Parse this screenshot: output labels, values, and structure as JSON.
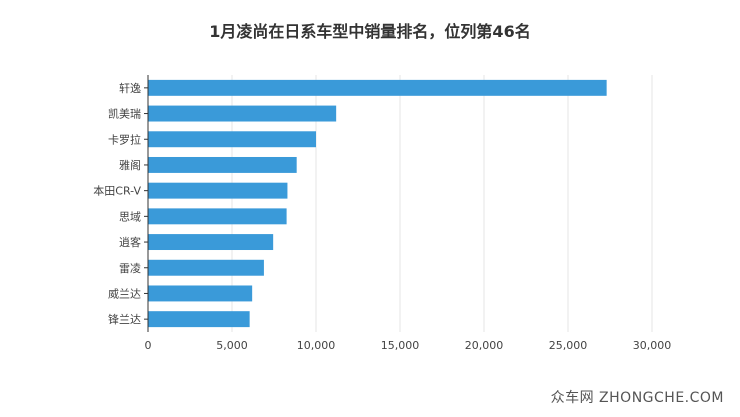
{
  "chart_data": {
    "type": "bar",
    "orientation": "horizontal",
    "title": "1月凌尚在日系车型中销量排名，位列第46名",
    "categories": [
      "轩逸",
      "凯美瑞",
      "卡罗拉",
      "雅阁",
      "本田CR-V",
      "思域",
      "逍客",
      "雷凌",
      "威兰达",
      "锋兰达"
    ],
    "values": [
      27300,
      11200,
      10000,
      8850,
      8300,
      8250,
      7450,
      6900,
      6200,
      6050
    ],
    "xlim": [
      0,
      30000
    ],
    "xticks": [
      0,
      5000,
      10000,
      15000,
      20000,
      25000,
      30000
    ],
    "xtick_labels": [
      "0",
      "5,000",
      "10,000",
      "15,000",
      "20,000",
      "25,000",
      "30,000"
    ],
    "grid": true,
    "bar_color": "#3a9ad9",
    "grid_color": "#e6e6e6"
  },
  "watermark": "众车网 ZHONGCHE.COM"
}
